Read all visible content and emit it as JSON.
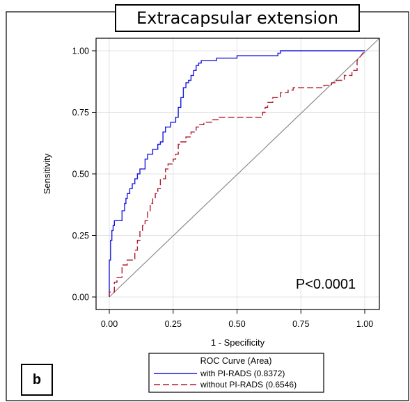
{
  "chart_data": {
    "type": "line",
    "title": "Extracapsular extension",
    "panel_label": "b",
    "xlabel": "1 - Specificity",
    "ylabel": "Sensitivity",
    "xlim": [
      0,
      1
    ],
    "ylim": [
      0,
      1
    ],
    "xticks": [
      "0.00",
      "0.25",
      "0.50",
      "0.75",
      "1.00"
    ],
    "yticks": [
      "0.00",
      "0.25",
      "0.50",
      "0.75",
      "1.00"
    ],
    "grid": true,
    "annotation": "P<0.0001",
    "legend": {
      "title": "ROC Curve (Area)",
      "placement": "bottom",
      "entries": [
        "with PI-RADS  (0.8372)",
        "without PI-RADS  (0.6546)"
      ]
    },
    "colors": {
      "with_pirads": "#1a1adc",
      "without_pirads": "#b01c2e",
      "reference": "#8c8c8c",
      "grid": "#e2e2e2"
    },
    "series": [
      {
        "name": "with PI-RADS  (0.8372)",
        "style": "solid",
        "x": [
          0,
          0,
          0.005,
          0.005,
          0.01,
          0.01,
          0.015,
          0.015,
          0.02,
          0.02,
          0.05,
          0.05,
          0.06,
          0.06,
          0.065,
          0.065,
          0.07,
          0.07,
          0.08,
          0.08,
          0.09,
          0.09,
          0.1,
          0.1,
          0.11,
          0.11,
          0.12,
          0.12,
          0.14,
          0.14,
          0.15,
          0.15,
          0.17,
          0.17,
          0.19,
          0.19,
          0.2,
          0.2,
          0.21,
          0.21,
          0.22,
          0.22,
          0.24,
          0.24,
          0.26,
          0.26,
          0.27,
          0.27,
          0.28,
          0.28,
          0.29,
          0.29,
          0.3,
          0.3,
          0.31,
          0.31,
          0.32,
          0.32,
          0.33,
          0.33,
          0.34,
          0.34,
          0.35,
          0.35,
          0.36,
          0.36,
          0.38,
          0.38,
          0.4,
          0.4,
          0.42,
          0.42,
          0.5,
          0.5,
          0.66,
          0.66,
          0.67,
          0.67,
          0.98,
          0.98,
          1.0
        ],
        "y": [
          0,
          0.15,
          0.15,
          0.23,
          0.23,
          0.27,
          0.27,
          0.29,
          0.29,
          0.31,
          0.31,
          0.35,
          0.35,
          0.38,
          0.38,
          0.4,
          0.4,
          0.42,
          0.42,
          0.44,
          0.44,
          0.46,
          0.46,
          0.48,
          0.48,
          0.5,
          0.5,
          0.52,
          0.52,
          0.56,
          0.56,
          0.58,
          0.58,
          0.6,
          0.6,
          0.62,
          0.62,
          0.63,
          0.63,
          0.67,
          0.67,
          0.69,
          0.69,
          0.71,
          0.71,
          0.73,
          0.73,
          0.77,
          0.77,
          0.81,
          0.81,
          0.85,
          0.85,
          0.87,
          0.87,
          0.88,
          0.88,
          0.9,
          0.9,
          0.92,
          0.92,
          0.94,
          0.94,
          0.95,
          0.95,
          0.96,
          0.96,
          0.96,
          0.96,
          0.96,
          0.96,
          0.97,
          0.97,
          0.98,
          0.98,
          0.99,
          0.99,
          1.0,
          1.0,
          1.0,
          1.0
        ]
      },
      {
        "name": "without PI-RADS  (0.6546)",
        "style": "dashed",
        "x": [
          0,
          0,
          0.02,
          0.02,
          0.03,
          0.03,
          0.05,
          0.05,
          0.07,
          0.07,
          0.1,
          0.1,
          0.11,
          0.11,
          0.12,
          0.12,
          0.13,
          0.13,
          0.14,
          0.14,
          0.15,
          0.15,
          0.16,
          0.16,
          0.17,
          0.17,
          0.18,
          0.18,
          0.19,
          0.19,
          0.2,
          0.2,
          0.22,
          0.22,
          0.23,
          0.23,
          0.25,
          0.25,
          0.26,
          0.26,
          0.27,
          0.27,
          0.28,
          0.28,
          0.3,
          0.3,
          0.32,
          0.32,
          0.34,
          0.34,
          0.35,
          0.35,
          0.37,
          0.37,
          0.4,
          0.4,
          0.43,
          0.43,
          0.45,
          0.45,
          0.47,
          0.47,
          0.6,
          0.6,
          0.61,
          0.61,
          0.62,
          0.62,
          0.64,
          0.64,
          0.67,
          0.67,
          0.69,
          0.69,
          0.7,
          0.7,
          0.72,
          0.72,
          0.82,
          0.82,
          0.84,
          0.84,
          0.87,
          0.87,
          0.89,
          0.89,
          0.92,
          0.92,
          0.95,
          0.95,
          0.97,
          0.97,
          1.0
        ],
        "y": [
          0,
          0.02,
          0.02,
          0.06,
          0.06,
          0.08,
          0.08,
          0.13,
          0.13,
          0.15,
          0.15,
          0.19,
          0.19,
          0.23,
          0.23,
          0.27,
          0.27,
          0.29,
          0.29,
          0.31,
          0.31,
          0.35,
          0.35,
          0.38,
          0.38,
          0.4,
          0.4,
          0.42,
          0.42,
          0.44,
          0.44,
          0.48,
          0.48,
          0.52,
          0.52,
          0.54,
          0.54,
          0.56,
          0.56,
          0.58,
          0.58,
          0.62,
          0.62,
          0.63,
          0.63,
          0.65,
          0.65,
          0.67,
          0.67,
          0.69,
          0.69,
          0.7,
          0.7,
          0.71,
          0.71,
          0.72,
          0.72,
          0.73,
          0.73,
          0.73,
          0.73,
          0.73,
          0.73,
          0.75,
          0.75,
          0.77,
          0.77,
          0.79,
          0.79,
          0.81,
          0.81,
          0.83,
          0.83,
          0.83,
          0.83,
          0.84,
          0.84,
          0.85,
          0.85,
          0.85,
          0.85,
          0.86,
          0.86,
          0.87,
          0.87,
          0.88,
          0.88,
          0.9,
          0.9,
          0.92,
          0.92,
          0.96,
          1.0
        ]
      }
    ]
  }
}
